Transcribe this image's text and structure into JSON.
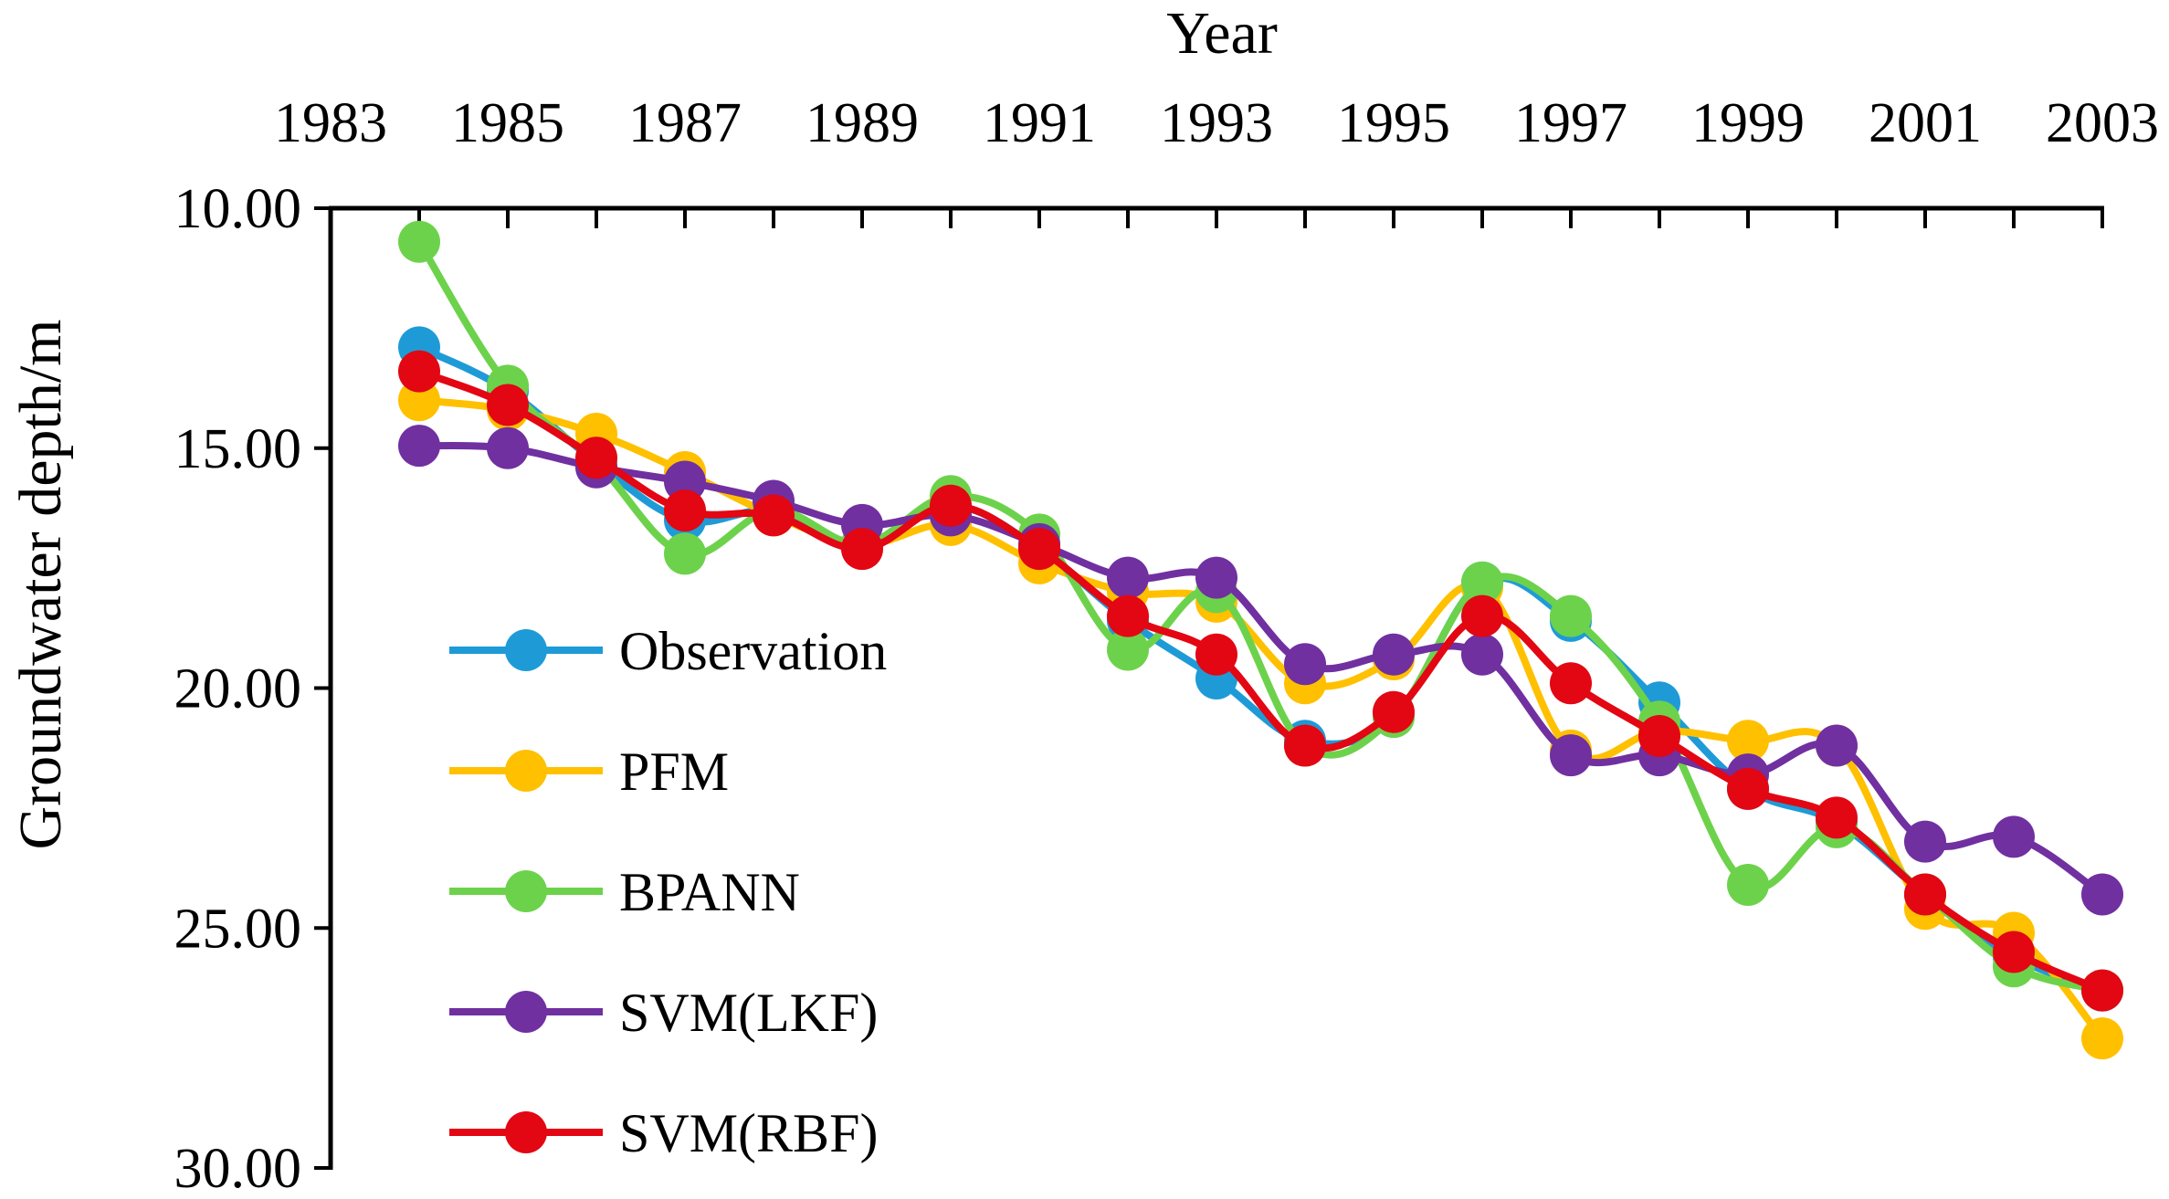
{
  "chart_data": {
    "type": "line",
    "title": "",
    "xlabel": "Year",
    "ylabel": "Groundwater depth/m",
    "x_tick_labels": [
      "1983",
      "1985",
      "1987",
      "1989",
      "1991",
      "1993",
      "1995",
      "1997",
      "1999",
      "2001",
      "2003"
    ],
    "y_tick_labels": [
      "10.00",
      "15.00",
      "20.00",
      "25.00",
      "30.00"
    ],
    "xlim": [
      1983,
      2003
    ],
    "ylim": [
      30,
      10
    ],
    "y_axis_inverted": true,
    "x_axis_position": "top",
    "grid": false,
    "legend_position": "bottom-left",
    "x": [
      1984,
      1985,
      1986,
      1987,
      1988,
      1989,
      1990,
      1991,
      1992,
      1993,
      1994,
      1995,
      1996,
      1997,
      1998,
      1999,
      2000,
      2001,
      2002,
      2003
    ],
    "series": [
      {
        "name": "Observation",
        "color": "#1E9BD7",
        "values": [
          12.9,
          13.8,
          15.3,
          16.5,
          16.3,
          17.0,
          16.2,
          17.1,
          18.6,
          19.8,
          21.1,
          20.6,
          17.8,
          18.6,
          20.3,
          22.1,
          22.8,
          24.3,
          25.6,
          26.3
        ]
      },
      {
        "name": "PFM",
        "color": "#FFC000",
        "values": [
          14.0,
          14.2,
          14.7,
          15.5,
          16.4,
          17.0,
          16.6,
          17.4,
          18.0,
          18.2,
          19.9,
          19.4,
          17.9,
          21.3,
          20.9,
          21.1,
          21.2,
          24.6,
          25.1,
          27.3
        ]
      },
      {
        "name": "BPANN",
        "color": "#6DD24B",
        "values": [
          10.7,
          13.7,
          15.3,
          17.2,
          16.3,
          17.0,
          16.0,
          16.8,
          19.2,
          18.0,
          21.2,
          20.6,
          17.8,
          18.5,
          20.7,
          24.1,
          22.9,
          24.3,
          25.8,
          26.3
        ]
      },
      {
        "name": "SVM(LKF)",
        "color": "#7030A0",
        "values": [
          14.95,
          15.0,
          15.4,
          15.7,
          16.1,
          16.6,
          16.4,
          17.0,
          17.7,
          17.7,
          19.5,
          19.3,
          19.3,
          21.4,
          21.4,
          21.8,
          21.2,
          23.2,
          23.1,
          24.3
        ]
      },
      {
        "name": "SVM(RBF)",
        "color": "#E30613",
        "values": [
          13.4,
          14.1,
          15.2,
          16.3,
          16.4,
          17.1,
          16.2,
          17.1,
          18.5,
          19.3,
          21.2,
          20.5,
          18.5,
          19.9,
          21.0,
          22.1,
          22.7,
          24.3,
          25.5,
          26.3
        ]
      }
    ]
  }
}
